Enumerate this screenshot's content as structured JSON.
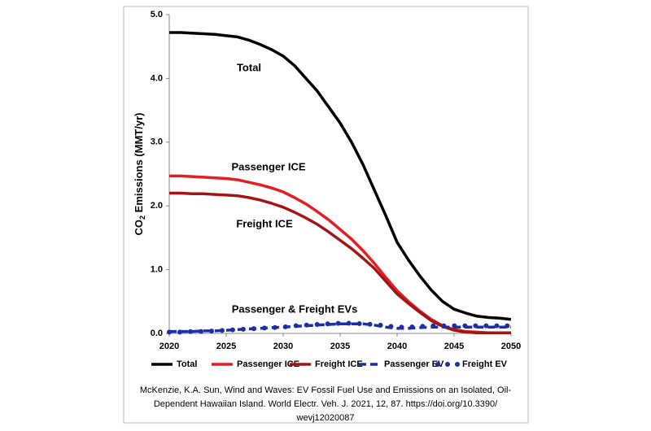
{
  "chart_data": {
    "type": "line",
    "y_label_parts": [
      "CO",
      "2",
      " Emissions (MMT/yr)"
    ],
    "annotations": [
      "Total",
      "Passenger ICE",
      "Freight ICE",
      "Passenger & Freight EVs"
    ],
    "caption": [
      "McKenzie, K.A. Sun, Wind and Waves: EV Fossil Fuel Use and Emissions on an Isolated, Oil-",
      "Dependent  Hawaiian Island. World Electr. Veh. J. 2021, 12, 87. https://doi.org/10.3390/",
      "wevj12020087"
    ],
    "x": [
      2020,
      2021,
      2022,
      2023,
      2024,
      2025,
      2026,
      2027,
      2028,
      2029,
      2030,
      2031,
      2032,
      2033,
      2034,
      2035,
      2036,
      2037,
      2038,
      2039,
      2040,
      2041,
      2042,
      2043,
      2044,
      2045,
      2046,
      2047,
      2048,
      2049,
      2050
    ],
    "xlim": [
      2020,
      2050
    ],
    "xticks": [
      2020,
      2025,
      2030,
      2035,
      2040,
      2045,
      2050
    ],
    "ylim": [
      0,
      5
    ],
    "yticks": [
      {
        "value": 0,
        "label": "0.0"
      },
      {
        "value": 1,
        "label": "1.0"
      },
      {
        "value": 2,
        "label": "2.0"
      },
      {
        "value": 3,
        "label": "3.0"
      },
      {
        "value": 4,
        "label": "4.0"
      },
      {
        "value": 5,
        "label": "5.0"
      }
    ],
    "grid": false,
    "series": [
      {
        "name": "Total",
        "color": "#000000",
        "style": "solid",
        "values": [
          4.72,
          4.72,
          4.71,
          4.7,
          4.69,
          4.67,
          4.65,
          4.6,
          4.53,
          4.45,
          4.35,
          4.2,
          4.0,
          3.8,
          3.55,
          3.3,
          3.0,
          2.65,
          2.25,
          1.85,
          1.43,
          1.15,
          0.9,
          0.68,
          0.5,
          0.38,
          0.32,
          0.27,
          0.25,
          0.24,
          0.22
        ]
      },
      {
        "name": "Passenger ICE",
        "color": "#e31e24",
        "style": "solid",
        "values": [
          2.47,
          2.47,
          2.46,
          2.45,
          2.44,
          2.43,
          2.41,
          2.37,
          2.33,
          2.28,
          2.22,
          2.13,
          2.03,
          1.91,
          1.78,
          1.63,
          1.48,
          1.3,
          1.1,
          0.88,
          0.67,
          0.5,
          0.35,
          0.22,
          0.12,
          0.06,
          0.03,
          0.02,
          0.01,
          0.01,
          0.01
        ]
      },
      {
        "name": "Freight ICE",
        "color": "#a31515",
        "style": "solid",
        "values": [
          2.2,
          2.2,
          2.19,
          2.19,
          2.18,
          2.17,
          2.16,
          2.13,
          2.09,
          2.04,
          1.98,
          1.9,
          1.81,
          1.71,
          1.59,
          1.46,
          1.33,
          1.18,
          1.02,
          0.82,
          0.62,
          0.47,
          0.33,
          0.2,
          0.11,
          0.05,
          0.02,
          0.01,
          0.01,
          0.01,
          0.01
        ]
      },
      {
        "name": "Passenger EV",
        "color": "#1c2fa8",
        "style": "dashed",
        "values": [
          0.03,
          0.03,
          0.03,
          0.04,
          0.04,
          0.05,
          0.06,
          0.07,
          0.08,
          0.09,
          0.1,
          0.11,
          0.12,
          0.13,
          0.14,
          0.15,
          0.15,
          0.15,
          0.13,
          0.1,
          0.08,
          0.08,
          0.09,
          0.1,
          0.1,
          0.1,
          0.1,
          0.1,
          0.1,
          0.1,
          0.1
        ]
      },
      {
        "name": "Freight EV",
        "color": "#1c2fa8",
        "style": "dotted",
        "values": [
          0.02,
          0.02,
          0.03,
          0.03,
          0.04,
          0.05,
          0.06,
          0.07,
          0.08,
          0.09,
          0.1,
          0.12,
          0.13,
          0.14,
          0.15,
          0.16,
          0.16,
          0.15,
          0.14,
          0.12,
          0.1,
          0.1,
          0.11,
          0.12,
          0.12,
          0.12,
          0.12,
          0.12,
          0.12,
          0.12,
          0.12
        ]
      }
    ]
  }
}
